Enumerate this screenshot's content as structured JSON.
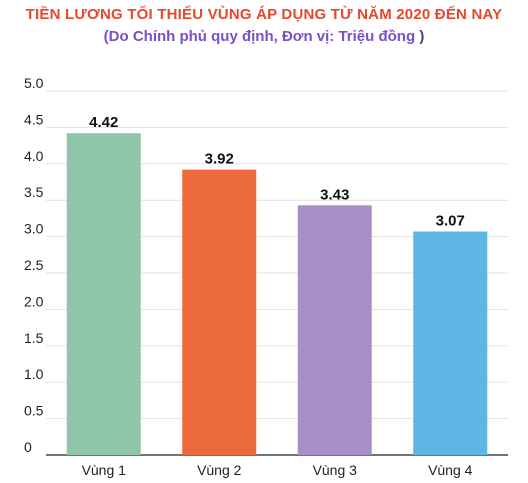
{
  "title": "TIỀN LƯƠNG TỐI THIỂU VÙNG ÁP DỤNG TỪ NĂM 2020 ĐẾN NAY",
  "subtitle": "(Do Chính phủ quy định, Đơn vị: Triệu đồng",
  "subtitle_close": ")",
  "chart_data": {
    "type": "bar",
    "title": "TIỀN LƯƠNG TỐI THIỂU VÙNG ÁP DỤNG TỪ NĂM 2020 ĐẾN NAY",
    "subtitle": "(Do Chính phủ quy định, Đơn vị: Triệu đồng )",
    "categories": [
      "Vùng 1",
      "Vùng 2",
      "Vùng 3",
      "Vùng 4"
    ],
    "values": [
      4.42,
      3.92,
      3.43,
      3.07
    ],
    "data_labels": [
      "4.42",
      "3.92",
      "3.43",
      "3.07"
    ],
    "colors": [
      "#8fc5a8",
      "#ec693c",
      "#a98fc8",
      "#5db6e6"
    ],
    "ylim": [
      0,
      5
    ],
    "yticks": [
      0,
      0.5,
      1,
      1.5,
      2,
      2.5,
      3,
      3.5,
      4,
      4.5,
      5
    ],
    "ytick_labels": [
      "0",
      "0.5",
      "1.0",
      "1.5",
      "2.0",
      "2.5",
      "3.0",
      "3.5",
      "4.0",
      "4.5",
      "5.0"
    ],
    "xlabel": "",
    "ylabel": "",
    "grid": true,
    "legend": false
  }
}
